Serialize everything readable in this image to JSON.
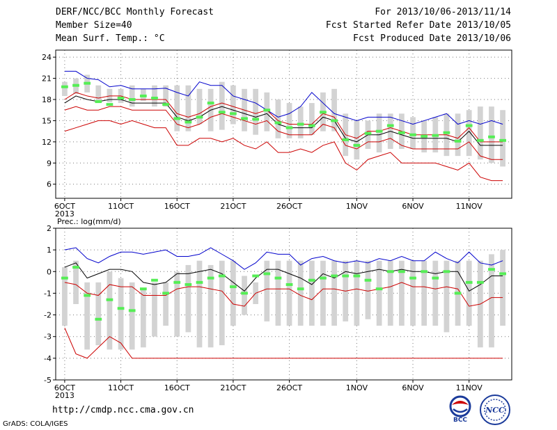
{
  "header": {
    "title": "DERF/NCC/BCC Monthly Forecast",
    "member_size": "Member Size=40",
    "variable": "Mean Surf. Temp.: °C",
    "period": "For 2013/10/06-2013/11/14",
    "refer_date": "Fcst Started Refer Date 2013/10/05",
    "produced_date": "Fcst Produced Date 2013/10/06"
  },
  "footer": {
    "url": "http://cmdp.ncc.cma.gov.cn",
    "credit": "GrADS: COLA/IGES"
  },
  "logos": {
    "bcc": "BCC",
    "ncc": "NCC"
  },
  "colors": {
    "max": "#0000cc",
    "min": "#cc0000",
    "mean": "#000000",
    "median": "#55ee55",
    "box": "#d3d3d3",
    "grid": "#777777"
  },
  "chart_data": [
    {
      "type": "box",
      "name": "temperature",
      "title": "",
      "ylabel": "",
      "ylim": [
        4,
        25
      ],
      "yticks": [
        6,
        9,
        12,
        15,
        18,
        21,
        24
      ],
      "xticks": [
        {
          "day": 0,
          "label": "6OCT",
          "sub": "2013"
        },
        {
          "day": 5,
          "label": "11OCT"
        },
        {
          "day": 10,
          "label": "16OCT"
        },
        {
          "day": 15,
          "label": "21OCT"
        },
        {
          "day": 20,
          "label": "26OCT"
        },
        {
          "day": 26,
          "label": "1NOV"
        },
        {
          "day": 31,
          "label": "6NOV"
        },
        {
          "day": 36,
          "label": "11NOV"
        }
      ],
      "xlim": [
        -0.8,
        39.8
      ],
      "box_low": [
        18.5,
        18.8,
        19.0,
        17.5,
        17.6,
        17.5,
        17.0,
        17.8,
        17.0,
        17.0,
        13.5,
        13.5,
        14.5,
        13.5,
        13.7,
        14.5,
        13.5,
        13.0,
        13.5,
        12.5,
        12.5,
        12.5,
        13.0,
        13.5,
        13.5,
        10.0,
        9.5,
        11.0,
        10.5,
        11.0,
        11.0,
        11.0,
        10.5,
        10.5,
        10.0,
        10.0,
        10.0,
        9.5,
        9.0,
        8.5
      ],
      "box_high": [
        20.5,
        21.0,
        21.5,
        20.0,
        19.5,
        19.5,
        20.0,
        19.5,
        20.0,
        20.0,
        20.0,
        20.0,
        19.5,
        19.5,
        20.5,
        20.0,
        19.5,
        19.5,
        19.0,
        18.0,
        17.5,
        17.0,
        17.5,
        19.0,
        19.5,
        16.0,
        15.0,
        15.0,
        16.0,
        16.0,
        16.0,
        15.5,
        15.0,
        15.5,
        16.0,
        16.0,
        16.5,
        17.0,
        17.0,
        16.5
      ],
      "median": [
        19.8,
        20.0,
        20.3,
        17.7,
        17.3,
        18.2,
        18.0,
        18.5,
        18.2,
        17.3,
        15.3,
        14.8,
        15.5,
        17.5,
        16.2,
        16.0,
        15.3,
        15.2,
        16.5,
        14.7,
        14.0,
        14.5,
        14.3,
        16.2,
        15.0,
        12.3,
        11.5,
        13.2,
        13.5,
        14.3,
        13.3,
        13.0,
        12.8,
        12.9,
        13.3,
        12.1,
        14.3,
        12.2,
        12.7,
        12.2
      ],
      "mean": [
        17.5,
        18.5,
        18.0,
        17.7,
        18.0,
        18.0,
        17.5,
        17.5,
        17.5,
        17.5,
        15.5,
        15.0,
        15.5,
        16.5,
        17.0,
        16.5,
        16.0,
        15.5,
        16.0,
        14.5,
        14.0,
        14.0,
        14.0,
        15.5,
        15.0,
        12.5,
        12.0,
        13.0,
        13.0,
        13.5,
        13.0,
        12.5,
        12.5,
        12.5,
        12.5,
        12.0,
        13.5,
        11.5,
        11.5,
        11.5
      ],
      "max": [
        22.0,
        22.0,
        21.0,
        20.8,
        19.8,
        20.0,
        19.5,
        19.5,
        19.5,
        19.6,
        19.0,
        18.5,
        20.5,
        20.0,
        20.0,
        18.5,
        18.0,
        17.5,
        16.5,
        15.5,
        16.0,
        17.0,
        19.0,
        17.5,
        16.0,
        15.5,
        15.0,
        15.5,
        15.5,
        15.5,
        15.0,
        14.5,
        15.0,
        15.5,
        16.0,
        14.5,
        15.0,
        14.5,
        15.0,
        14.5
      ],
      "min": [
        13.5,
        14.0,
        14.5,
        15.0,
        15.0,
        14.5,
        15.0,
        14.5,
        14.0,
        14.0,
        11.5,
        11.5,
        12.5,
        12.5,
        12.0,
        12.5,
        11.5,
        11.0,
        12.0,
        10.5,
        10.5,
        11.0,
        10.5,
        11.5,
        12.0,
        9.0,
        8.0,
        9.5,
        10.0,
        10.5,
        9.0,
        9.0,
        9.0,
        9.0,
        8.5,
        8.0,
        9.0,
        7.0,
        6.5,
        6.5
      ],
      "mean_plus": [
        18.0,
        19.0,
        18.5,
        18.2,
        18.5,
        18.5,
        18.0,
        18.0,
        18.0,
        18.0,
        16.0,
        15.5,
        16.0,
        17.0,
        17.5,
        17.0,
        16.5,
        16.0,
        16.5,
        15.0,
        14.5,
        14.5,
        14.5,
        16.0,
        15.5,
        13.0,
        12.5,
        13.5,
        13.5,
        14.0,
        13.5,
        13.0,
        13.0,
        13.0,
        13.0,
        12.5,
        14.0,
        12.0,
        12.0,
        12.0
      ],
      "mean_minus": [
        16.5,
        17.0,
        16.5,
        16.5,
        17.0,
        17.0,
        16.5,
        16.5,
        16.5,
        16.5,
        14.5,
        14.0,
        14.5,
        15.5,
        16.0,
        15.5,
        15.0,
        14.5,
        15.0,
        13.5,
        13.0,
        13.0,
        13.0,
        14.5,
        14.0,
        11.5,
        11.0,
        12.0,
        12.0,
        12.5,
        11.5,
        11.0,
        11.0,
        11.0,
        11.0,
        11.0,
        12.0,
        10.0,
        9.5,
        9.5
      ]
    },
    {
      "type": "box",
      "name": "precipitation",
      "title": "Prec.: log(mm/d)",
      "ylabel": "",
      "ylim": [
        -5,
        2
      ],
      "yticks": [
        -5,
        -4,
        -3,
        -2,
        -1,
        0,
        1,
        2
      ],
      "xticks": [
        {
          "day": 0,
          "label": "6OCT",
          "sub": "2013"
        },
        {
          "day": 5,
          "label": "11OCT"
        },
        {
          "day": 10,
          "label": "16OCT"
        },
        {
          "day": 15,
          "label": "21OCT"
        },
        {
          "day": 20,
          "label": "26OCT"
        },
        {
          "day": 26,
          "label": "1NOV"
        },
        {
          "day": 31,
          "label": "6NOV"
        },
        {
          "day": 36,
          "label": "11NOV"
        }
      ],
      "xlim": [
        -0.8,
        39.8
      ],
      "box_low": [
        -2.5,
        -1.5,
        -3.6,
        -3.4,
        -3.6,
        -3.6,
        -3.6,
        -3.5,
        -3.0,
        -2.5,
        -3.0,
        -2.8,
        -3.5,
        -3.5,
        -3.4,
        -2.5,
        -2.0,
        -1.5,
        -2.3,
        -2.5,
        -2.5,
        -2.5,
        -2.5,
        -2.5,
        -2.5,
        -2.3,
        -2.5,
        -2.2,
        -2.5,
        -2.5,
        -2.5,
        -2.5,
        -2.5,
        -2.5,
        -2.8,
        -2.5,
        -2.5,
        -3.5,
        -3.5,
        -2.5
      ],
      "box_high": [
        0.2,
        0.5,
        -0.5,
        -0.5,
        0.0,
        -0.3,
        -0.5,
        -0.8,
        -0.5,
        -0.5,
        0.0,
        0.3,
        0.5,
        0.3,
        0.5,
        0.5,
        -0.2,
        -0.5,
        0.5,
        0.5,
        0.5,
        0.5,
        0.5,
        0.5,
        0.5,
        0.5,
        0.5,
        0.5,
        0.5,
        0.5,
        0.5,
        0.5,
        0.5,
        0.5,
        0.5,
        0.5,
        0.5,
        0.5,
        0.8,
        1.0
      ],
      "median": [
        -0.3,
        0.2,
        -1.1,
        -2.2,
        -1.3,
        -1.7,
        -1.8,
        -0.8,
        -0.4,
        -1.0,
        -0.5,
        -0.6,
        -0.5,
        -0.3,
        -0.2,
        -0.7,
        -1.0,
        -0.2,
        -0.1,
        -0.3,
        -0.6,
        -0.8,
        -0.4,
        -0.3,
        -0.2,
        -0.2,
        -0.2,
        -0.4,
        -0.8,
        0.0,
        0.0,
        -0.3,
        0.0,
        -0.3,
        0.0,
        -1.0,
        -0.5,
        -0.5,
        0.1,
        -0.1
      ],
      "mean": [
        0.2,
        0.4,
        -0.3,
        -0.1,
        0.1,
        0.1,
        0.0,
        -0.5,
        -0.6,
        -0.5,
        -0.1,
        -0.1,
        0.0,
        0.1,
        -0.1,
        -0.5,
        -0.9,
        -0.3,
        0.1,
        0.1,
        -0.1,
        -0.3,
        -0.6,
        -0.1,
        -0.3,
        0.0,
        -0.1,
        0.0,
        0.1,
        0.0,
        0.1,
        0.0,
        0.0,
        -0.1,
        0.0,
        0.0,
        -0.9,
        -0.6,
        -0.2,
        -0.2
      ],
      "max": [
        1.0,
        1.1,
        0.6,
        0.4,
        0.7,
        0.9,
        0.9,
        0.8,
        0.9,
        1.0,
        0.7,
        0.7,
        0.8,
        1.1,
        0.8,
        0.5,
        0.1,
        0.4,
        0.9,
        0.8,
        0.8,
        0.3,
        0.6,
        0.7,
        0.5,
        0.4,
        0.5,
        0.4,
        0.6,
        0.5,
        0.7,
        0.5,
        0.5,
        0.9,
        0.6,
        0.4,
        0.9,
        0.4,
        0.3,
        0.5
      ],
      "min": [
        -2.6,
        -3.8,
        -4.0,
        -3.5,
        -3.0,
        -3.3,
        -4.0,
        -4.0,
        -4.0,
        -4.0,
        -4.0,
        -4.0,
        -4.0,
        -4.0,
        -4.0,
        -4.0,
        -4.0,
        -4.0,
        -4.0,
        -4.0,
        -4.0,
        -4.0,
        -4.0,
        -4.0,
        -4.0,
        -4.0,
        -4.0,
        -4.0,
        -4.0,
        -4.0,
        -4.0,
        -4.0,
        -4.0,
        -4.0,
        -4.0,
        -4.0,
        -4.0,
        -4.0,
        -4.0,
        -4.0
      ],
      "mean_minus": [
        -0.5,
        -0.6,
        -1.0,
        -1.1,
        -0.6,
        -0.7,
        -0.7,
        -1.1,
        -1.1,
        -1.1,
        -0.8,
        -0.7,
        -0.7,
        -0.8,
        -0.9,
        -1.5,
        -1.6,
        -1.0,
        -0.8,
        -0.8,
        -0.8,
        -1.1,
        -1.3,
        -0.8,
        -0.8,
        -0.9,
        -0.8,
        -0.9,
        -0.8,
        -0.7,
        -0.5,
        -0.7,
        -0.7,
        -0.8,
        -0.7,
        -0.8,
        -1.6,
        -1.5,
        -1.2,
        -1.2
      ],
      "mean_minus_low": [
        -2.6,
        -3.7,
        -4.0,
        -3.3,
        -2.9,
        -3.3,
        -4.0
      ]
    }
  ]
}
